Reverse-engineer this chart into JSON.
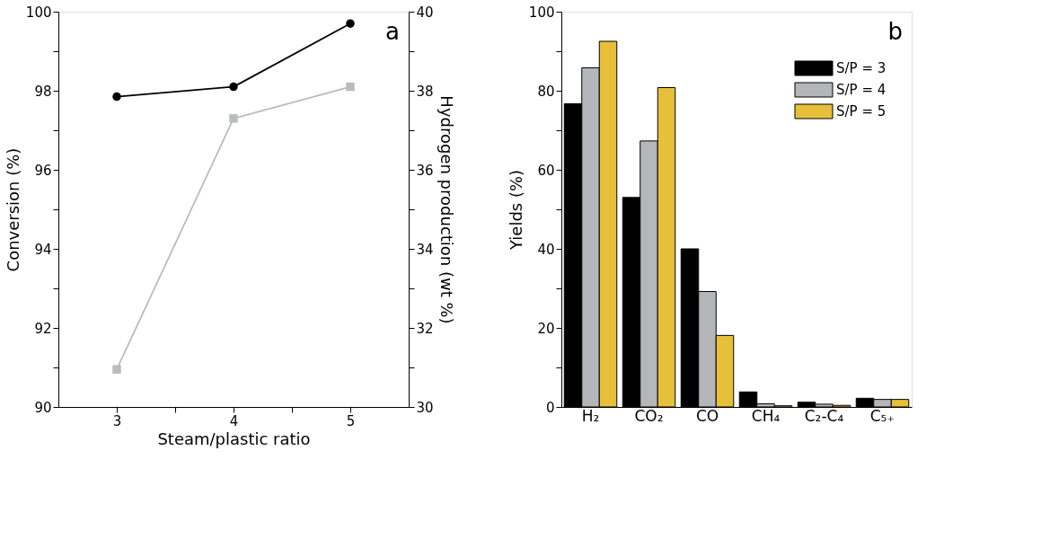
{
  "chart_data": [
    {
      "type": "line",
      "xlabel": "Steam/plastic ratio",
      "ylabel": "Conversion (%)",
      "y2label": "Hydrogen production (wt %)",
      "x": [
        3,
        4,
        5
      ],
      "xlim": [
        2.5,
        5.5
      ],
      "xticks": [
        3,
        {
          "value": 3.5,
          "label": null
        },
        4,
        {
          "value": 4.5,
          "label": null
        },
        5
      ],
      "ylim": [
        90,
        100
      ],
      "yticks": [
        90,
        {
          "value": 91,
          "label": null
        },
        92,
        {
          "value": 93,
          "label": null
        },
        94,
        {
          "value": 95,
          "label": null
        },
        96,
        {
          "value": 97,
          "label": null
        },
        98,
        {
          "value": 99,
          "label": null
        },
        100
      ],
      "y2lim": [
        30,
        40
      ],
      "y2ticks": [
        30,
        {
          "value": 31,
          "label": null
        },
        32,
        {
          "value": 33,
          "label": null
        },
        34,
        {
          "value": 35,
          "label": null
        },
        36,
        {
          "value": 37,
          "label": null
        },
        38,
        {
          "value": 39,
          "label": null
        },
        40
      ],
      "grid": false,
      "line_style": "solid",
      "annotations": [
        "a"
      ],
      "series": [
        {
          "color": "#000000",
          "marker": "circle",
          "values": [
            97.85,
            98.1,
            99.7
          ]
        },
        {
          "color": "#b8bcbf",
          "marker": "square",
          "axis": "y2",
          "values": [
            30.95,
            37.3,
            38.1
          ]
        }
      ]
    },
    {
      "type": "bar",
      "ylabel": "Yields (%)",
      "categories": [
        "H₂",
        "CO₂",
        "CO",
        "CH₄",
        "C₂-C₄",
        "C₅₊"
      ],
      "ylim": [
        0,
        100
      ],
      "yticks": [
        0,
        {
          "value": 10,
          "label": null
        },
        20,
        {
          "value": 30,
          "label": null
        },
        40,
        {
          "value": 50,
          "label": null
        },
        60,
        {
          "value": 70,
          "label": null
        },
        80,
        {
          "value": 90,
          "label": null
        },
        100
      ],
      "grid": false,
      "legend": "top right",
      "annotations": [
        "b"
      ],
      "series": [
        {
          "name": "S/P = 3",
          "color": "#000000",
          "values": [
            76.7,
            53,
            40,
            3.8,
            1.2,
            2.2
          ]
        },
        {
          "name": "S/P = 4",
          "color": "#b4b6b9",
          "values": [
            85.8,
            67.3,
            29.2,
            0.8,
            0.7,
            1.9
          ]
        },
        {
          "name": "S/P = 5",
          "color": "#e6c03a",
          "values": [
            92.5,
            80.8,
            18.1,
            0.3,
            0.4,
            1.9
          ]
        }
      ]
    }
  ]
}
